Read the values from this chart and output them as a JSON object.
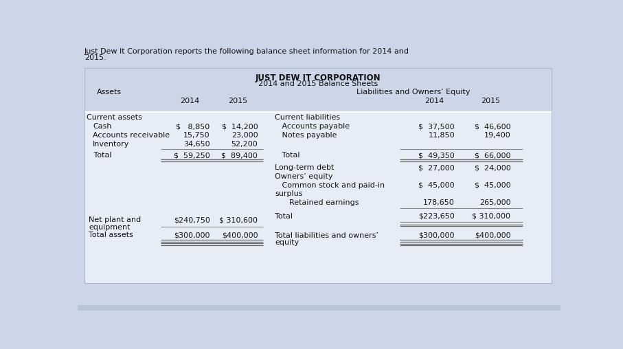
{
  "intro_text_1": "Just Dew It Corporation reports the following balance sheet information for 2014 and",
  "intro_text_2": "2015.",
  "title_line1": "JUST DEW IT CORPORATION",
  "title_line2": "2014 and 2015 Balance Sheets",
  "header_assets": "Assets",
  "header_liabilities": "Liabilities and Owners’ Equity",
  "col_2014": "2014",
  "col_2015": "2015",
  "bg_color": "#cdd5e8",
  "header_bg": "#cdd5e8",
  "table_bg": "#e8ecf4",
  "body_bg": "#f0f2f8",
  "font_size": 8.0,
  "font_family": "DejaVu Sans",
  "left_rows": [
    {
      "label": "Current assets",
      "indent": 0,
      "v14": "",
      "v15": "",
      "type": "normal"
    },
    {
      "label": "Cash",
      "indent": 1,
      "v14": "$   8,850",
      "v15": "$  14,200",
      "type": "normal"
    },
    {
      "label": "Accounts receivable",
      "indent": 1,
      "v14": "15,750",
      "v15": "23,000",
      "type": "normal"
    },
    {
      "label": "Inventory",
      "indent": 1,
      "v14": "34,650",
      "v15": "52,200",
      "type": "normal"
    },
    {
      "label": "",
      "indent": 0,
      "v14": "",
      "v15": "",
      "type": "thinline"
    },
    {
      "label": "   Total",
      "indent": 0,
      "v14": "$  59,250",
      "v15": "$  89,400",
      "type": "normal"
    },
    {
      "label": "",
      "indent": 0,
      "v14": "",
      "v15": "",
      "type": "doubleline"
    },
    {
      "label": "",
      "indent": 0,
      "v14": "",
      "v15": "",
      "type": "spacer"
    },
    {
      "label": "",
      "indent": 0,
      "v14": "",
      "v15": "",
      "type": "spacer"
    },
    {
      "label": "",
      "indent": 0,
      "v14": "",
      "v15": "",
      "type": "spacer"
    },
    {
      "label": "",
      "indent": 0,
      "v14": "",
      "v15": "",
      "type": "spacer"
    },
    {
      "label": "",
      "indent": 0,
      "v14": "",
      "v15": "",
      "type": "spacer"
    },
    {
      "label": "",
      "indent": 0,
      "v14": "",
      "v15": "",
      "type": "spacer"
    }
  ],
  "right_rows": [
    {
      "label": "Current liabilities",
      "indent": 0,
      "v14": "",
      "v15": "",
      "type": "normal"
    },
    {
      "label": "   Accounts payable",
      "indent": 0,
      "v14": "$  37,500",
      "v15": "$  46,600",
      "type": "normal"
    },
    {
      "label": "   Notes payable",
      "indent": 0,
      "v14": "11,850",
      "v15": "19,400",
      "type": "normal"
    },
    {
      "label": "",
      "indent": 0,
      "v14": "",
      "v15": "",
      "type": "spacer"
    },
    {
      "label": "",
      "indent": 0,
      "v14": "",
      "v15": "",
      "type": "thinline"
    },
    {
      "label": "   Total",
      "indent": 0,
      "v14": "$  49,350",
      "v15": "$  66,000",
      "type": "normal"
    },
    {
      "label": "",
      "indent": 0,
      "v14": "",
      "v15": "",
      "type": "doubleline"
    },
    {
      "label": "Long-term debt",
      "indent": 0,
      "v14": "$  27,000",
      "v15": "$  24,000",
      "type": "normal"
    },
    {
      "label": "Owners’ equity",
      "indent": 0,
      "v14": "",
      "v15": "",
      "type": "normal"
    },
    {
      "label": "   Common stock and paid-in",
      "indent": 0,
      "v14": "$  45,000",
      "v15": "$  45,000",
      "type": "normal"
    },
    {
      "label": "surplus",
      "indent": 0,
      "v14": "",
      "v15": "",
      "type": "normal"
    },
    {
      "label": "      Retained earnings",
      "indent": 0,
      "v14": "178,650",
      "v15": "265,000",
      "type": "normal"
    },
    {
      "label": "",
      "indent": 0,
      "v14": "",
      "v15": "",
      "type": "thinline"
    }
  ],
  "net_plant_label1": "Net plant and",
  "net_plant_label2": "equipment",
  "net_plant_v14": "$240,750",
  "net_plant_v15": "$ 310,600",
  "owners_total_label": "Total",
  "owners_total_v14": "$223,650",
  "owners_total_v15": "$ 310,000",
  "total_assets_label": "Total assets",
  "total_assets_v14": "$300,000",
  "total_assets_v15": "$400,000",
  "total_liab_label1": "Total liabilities and owners’",
  "total_liab_label2": "equity",
  "total_liab_v14": "$300,000",
  "total_liab_v15": "$400,000"
}
